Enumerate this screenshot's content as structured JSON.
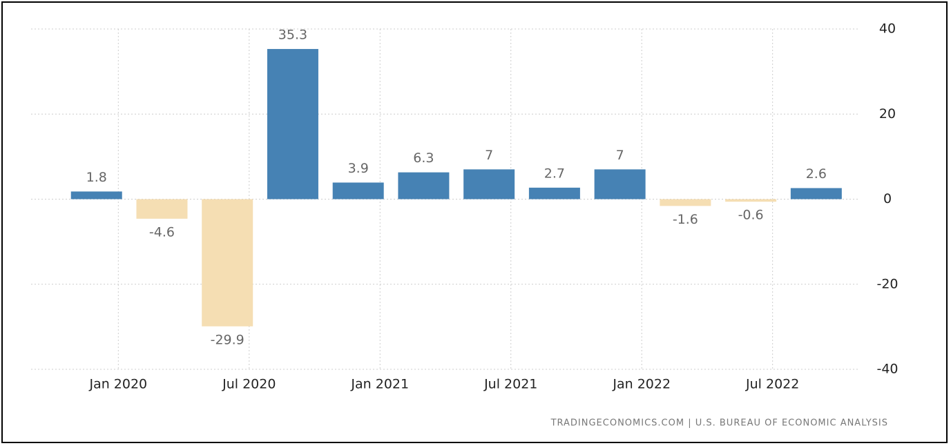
{
  "chart_data": {
    "type": "bar",
    "x": [
      "2019-12",
      "2020-03",
      "2020-06",
      "2020-09",
      "2020-12",
      "2021-03",
      "2021-06",
      "2021-09",
      "2021-12",
      "2022-03",
      "2022-06",
      "2022-09"
    ],
    "values": [
      1.8,
      -4.6,
      -29.9,
      35.3,
      3.9,
      6.3,
      7,
      2.7,
      7,
      -1.6,
      -0.6,
      2.6
    ],
    "color": "#4682b4",
    "negative_color": "#f5deb3",
    "xlim": [
      "2019-09",
      "2022-11"
    ],
    "xticks": [
      {
        "value": "2020-01",
        "label": "Jan 2020"
      },
      {
        "value": "2020-07",
        "label": "Jul 2020"
      },
      {
        "value": "2021-01",
        "label": "Jan 2021"
      },
      {
        "value": "2021-07",
        "label": "Jul 2021"
      },
      {
        "value": "2022-01",
        "label": "Jan 2022"
      },
      {
        "value": "2022-07",
        "label": "Jul 2022"
      }
    ],
    "ylim": [
      -40,
      40
    ],
    "yticks": [
      -40,
      -20,
      0,
      20,
      40
    ],
    "grid": true,
    "source": "TRADINGECONOMICS.COM | U.S. BUREAU OF ECONOMIC ANALYSIS"
  }
}
